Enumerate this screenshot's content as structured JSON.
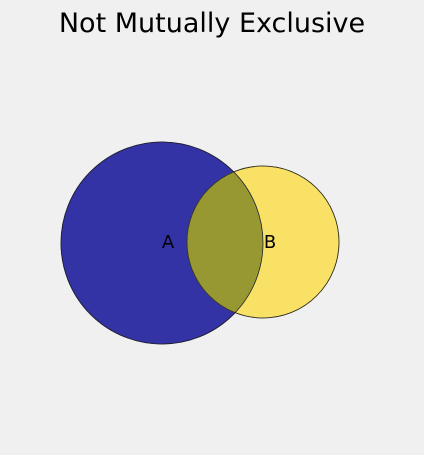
{
  "diagram": {
    "title": "Not Mutually Exclusive",
    "type": "venn",
    "sets": [
      {
        "label": "A",
        "color": "#3333a6",
        "relative_size": "larger"
      },
      {
        "label": "B",
        "color": "#f9e166",
        "relative_size": "smaller"
      }
    ],
    "intersection_color": "#989833",
    "background_color": "#f0f0f0"
  }
}
